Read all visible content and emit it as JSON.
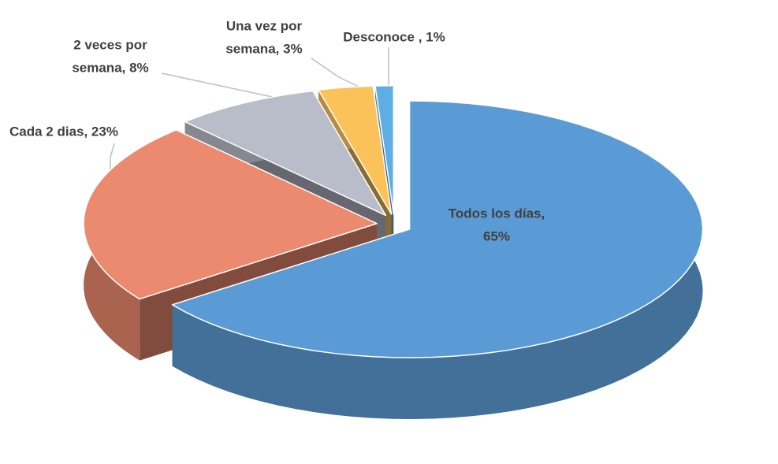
{
  "chart_data": {
    "type": "pie3d",
    "values": [
      65,
      23,
      8,
      3,
      1
    ],
    "value_labels": [
      [
        "Todos los días,",
        "65%"
      ],
      [
        "Cada 2 dias, 23%"
      ],
      [
        "2 veces por",
        "semana, 8%"
      ],
      [
        "Una vez por",
        "semana, 3%"
      ],
      [
        "Desconoce , 1%"
      ]
    ],
    "colors": [
      "#5b9bd5",
      "#eb8a6e",
      "#b9bcc9",
      "#fbc25a",
      "#5eaee3"
    ]
  }
}
